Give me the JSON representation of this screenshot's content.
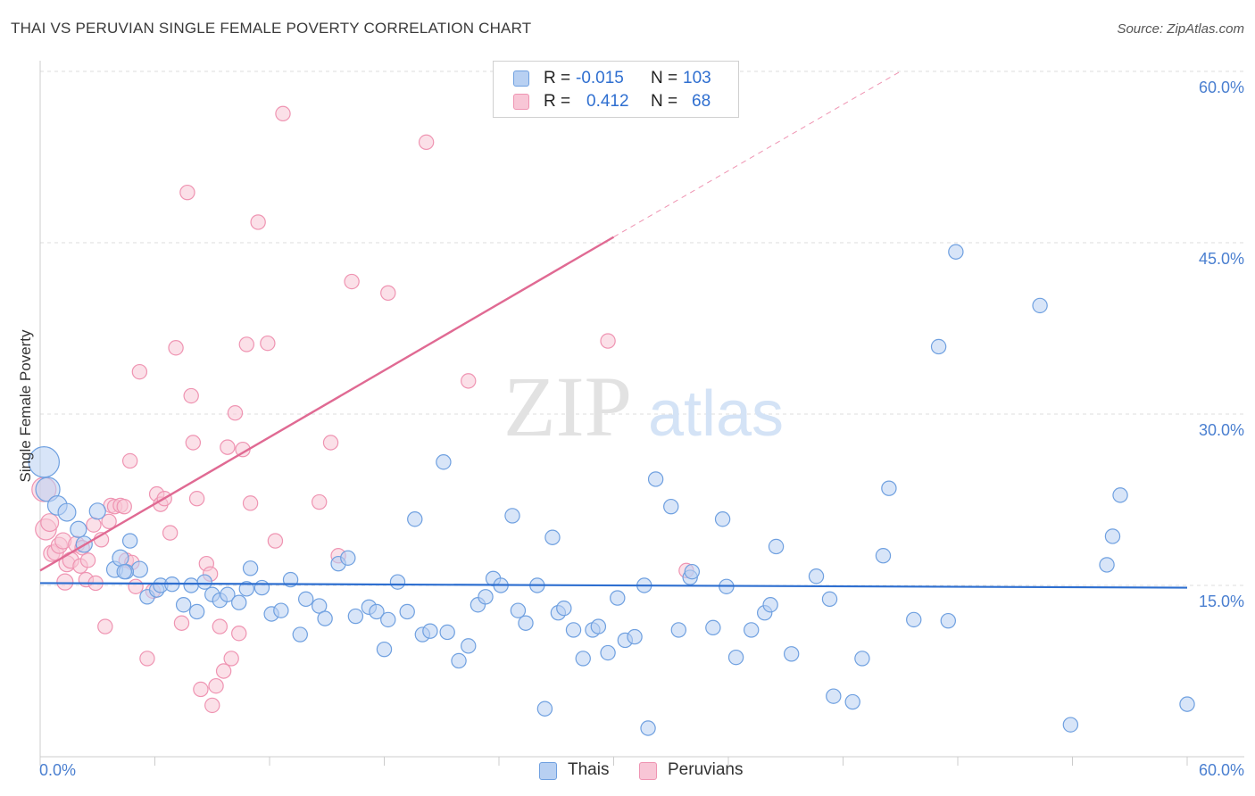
{
  "title": "THAI VS PERUVIAN SINGLE FEMALE POVERTY CORRELATION CHART",
  "source": "Source: ZipAtlas.com",
  "watermark": {
    "zip": "ZIP",
    "atlas": "atlas"
  },
  "colors": {
    "thai": "#6fa0e0",
    "thai_fill": "#b8d0f2",
    "thai_line": "#2e6fd0",
    "peru": "#ef94b2",
    "peru_fill": "#f8c6d6",
    "peru_line": "#e06a93",
    "grid": "#dddddd",
    "axis_text": "#4a7fd0"
  },
  "legend": {
    "thais": {
      "r_label": "R =",
      "r_value": "-0.015",
      "n_label": "N =",
      "n_value": "103"
    },
    "peruvians": {
      "r_label": "R =",
      "r_value": "0.412",
      "n_label": "N =",
      "n_value": "68"
    }
  },
  "bottom_legend": {
    "thais": "Thais",
    "peruvians": "Peruvians"
  },
  "chart_data": {
    "type": "scatter",
    "title": "THAI VS PERUVIAN SINGLE FEMALE POVERTY CORRELATION CHART",
    "xlabel": "",
    "ylabel": "Single Female Poverty",
    "xlim": [
      0,
      60
    ],
    "ylim": [
      0,
      60
    ],
    "x_tick_labels": [
      "0.0%",
      "60.0%"
    ],
    "y_ticks": [
      15,
      30,
      45,
      60
    ],
    "y_tick_labels": [
      "15.0%",
      "30.0%",
      "45.0%",
      "60.0%"
    ],
    "series": [
      {
        "name": "Thais",
        "r": -0.015,
        "n": 103,
        "trend": {
          "x0": 0,
          "y0": 15.2,
          "x1": 60,
          "y1": 14.8
        },
        "points": [
          [
            0.2,
            25.8,
            1.9
          ],
          [
            0.4,
            23.4,
            1.5
          ],
          [
            0.9,
            22.0,
            1.2
          ],
          [
            1.4,
            21.4,
            1.1
          ],
          [
            2.0,
            19.9,
            1.0
          ],
          [
            2.3,
            18.6,
            1.0
          ],
          [
            3.0,
            21.5,
            1.0
          ],
          [
            3.9,
            16.4,
            1.0
          ],
          [
            4.2,
            17.4,
            1.0
          ],
          [
            5.2,
            16.4,
            1.0
          ],
          [
            4.7,
            18.9,
            0.9
          ],
          [
            4.5,
            16.2,
            0.9
          ],
          [
            4.4,
            16.2,
            0.9
          ],
          [
            5.6,
            14.0,
            0.9
          ],
          [
            6.1,
            14.6,
            0.9
          ],
          [
            6.3,
            15.0,
            0.9
          ],
          [
            6.9,
            15.1,
            0.9
          ],
          [
            7.5,
            13.3,
            0.9
          ],
          [
            7.9,
            15.0,
            0.9
          ],
          [
            8.2,
            12.7,
            0.9
          ],
          [
            8.6,
            15.3,
            0.9
          ],
          [
            9.0,
            14.2,
            0.9
          ],
          [
            9.4,
            13.7,
            0.9
          ],
          [
            9.8,
            14.2,
            0.9
          ],
          [
            10.4,
            13.5,
            0.9
          ],
          [
            10.8,
            14.7,
            0.9
          ],
          [
            11.0,
            16.5,
            0.9
          ],
          [
            11.6,
            14.8,
            0.9
          ],
          [
            12.1,
            12.5,
            0.9
          ],
          [
            12.6,
            12.8,
            0.9
          ],
          [
            13.1,
            15.5,
            0.9
          ],
          [
            13.6,
            10.7,
            0.9
          ],
          [
            13.9,
            13.8,
            0.9
          ],
          [
            14.6,
            13.2,
            0.9
          ],
          [
            14.9,
            12.1,
            0.9
          ],
          [
            15.6,
            16.9,
            0.9
          ],
          [
            16.1,
            17.4,
            0.9
          ],
          [
            16.5,
            12.3,
            0.9
          ],
          [
            17.2,
            13.1,
            0.9
          ],
          [
            17.6,
            12.7,
            0.9
          ],
          [
            18.0,
            9.4,
            0.9
          ],
          [
            18.2,
            12.0,
            0.9
          ],
          [
            18.7,
            15.3,
            0.9
          ],
          [
            19.2,
            12.7,
            0.9
          ],
          [
            19.6,
            20.8,
            0.9
          ],
          [
            20.0,
            10.7,
            0.9
          ],
          [
            20.4,
            11.0,
            0.9
          ],
          [
            21.1,
            25.8,
            0.9
          ],
          [
            21.3,
            10.9,
            0.9
          ],
          [
            21.9,
            8.4,
            0.9
          ],
          [
            22.4,
            9.7,
            0.9
          ],
          [
            22.9,
            13.3,
            0.9
          ],
          [
            23.3,
            14.0,
            0.9
          ],
          [
            23.7,
            15.6,
            0.9
          ],
          [
            24.1,
            15.0,
            0.9
          ],
          [
            24.7,
            21.1,
            0.9
          ],
          [
            25.0,
            12.8,
            0.9
          ],
          [
            25.4,
            11.7,
            0.9
          ],
          [
            26.0,
            15.0,
            0.9
          ],
          [
            26.4,
            4.2,
            0.9
          ],
          [
            26.8,
            19.2,
            0.9
          ],
          [
            27.1,
            12.6,
            0.9
          ],
          [
            27.4,
            13.0,
            0.9
          ],
          [
            27.9,
            11.1,
            0.9
          ],
          [
            28.4,
            8.6,
            0.9
          ],
          [
            28.9,
            11.1,
            0.9
          ],
          [
            29.2,
            11.4,
            0.9
          ],
          [
            29.7,
            9.1,
            0.9
          ],
          [
            30.2,
            13.9,
            0.9
          ],
          [
            30.6,
            10.2,
            0.9
          ],
          [
            31.1,
            10.5,
            0.9
          ],
          [
            31.6,
            15.0,
            0.9
          ],
          [
            31.8,
            2.5,
            0.9
          ],
          [
            32.2,
            24.3,
            0.9
          ],
          [
            33.0,
            21.9,
            0.9
          ],
          [
            33.4,
            11.1,
            0.9
          ],
          [
            34.0,
            15.7,
            0.9
          ],
          [
            34.1,
            16.2,
            0.9
          ],
          [
            35.2,
            11.3,
            0.9
          ],
          [
            35.7,
            20.8,
            0.9
          ],
          [
            35.9,
            14.9,
            0.9
          ],
          [
            36.4,
            8.7,
            0.9
          ],
          [
            37.2,
            11.1,
            0.9
          ],
          [
            37.9,
            12.6,
            0.9
          ],
          [
            38.2,
            13.3,
            0.9
          ],
          [
            38.5,
            18.4,
            0.9
          ],
          [
            39.3,
            9.0,
            0.9
          ],
          [
            40.6,
            15.8,
            0.9
          ],
          [
            41.3,
            13.8,
            0.9
          ],
          [
            41.5,
            5.3,
            0.9
          ],
          [
            42.5,
            4.8,
            0.9
          ],
          [
            43.0,
            8.6,
            0.9
          ],
          [
            44.1,
            17.6,
            0.9
          ],
          [
            44.4,
            23.5,
            0.9
          ],
          [
            45.7,
            12.0,
            0.9
          ],
          [
            47.0,
            35.9,
            0.9
          ],
          [
            47.5,
            11.9,
            0.9
          ],
          [
            47.9,
            44.2,
            0.9
          ],
          [
            52.3,
            39.5,
            0.9
          ],
          [
            53.9,
            2.8,
            0.9
          ],
          [
            55.8,
            16.8,
            0.9
          ],
          [
            56.1,
            19.3,
            0.9
          ],
          [
            56.5,
            22.9,
            0.9
          ],
          [
            60.0,
            4.6,
            0.9
          ]
        ]
      },
      {
        "name": "Peruvians",
        "r": 0.412,
        "n": 68,
        "trend": {
          "x0": 0,
          "y0": 16.3,
          "x1": 30,
          "y1": 45.5,
          "dash_x1": 45,
          "dash_y1": 60
        },
        "points": [
          [
            0.2,
            23.4,
            1.5
          ],
          [
            0.3,
            19.9,
            1.3
          ],
          [
            0.5,
            20.5,
            1.1
          ],
          [
            0.6,
            17.8,
            1.0
          ],
          [
            0.8,
            17.9,
            1.0
          ],
          [
            1.0,
            18.5,
            1.0
          ],
          [
            1.2,
            18.9,
            1.0
          ],
          [
            1.3,
            15.3,
            1.0
          ],
          [
            1.4,
            16.9,
            1.0
          ],
          [
            1.6,
            17.2,
            1.0
          ],
          [
            1.9,
            18.6,
            1.0
          ],
          [
            2.1,
            16.7,
            0.9
          ],
          [
            2.2,
            18.3,
            0.9
          ],
          [
            2.4,
            15.5,
            0.9
          ],
          [
            2.5,
            17.2,
            0.9
          ],
          [
            2.8,
            20.3,
            0.9
          ],
          [
            2.9,
            15.2,
            0.9
          ],
          [
            3.2,
            19.0,
            0.9
          ],
          [
            3.4,
            11.4,
            0.9
          ],
          [
            3.6,
            20.6,
            0.9
          ],
          [
            3.7,
            22.0,
            0.9
          ],
          [
            3.9,
            21.9,
            0.9
          ],
          [
            4.2,
            22.0,
            0.9
          ],
          [
            4.4,
            21.9,
            0.9
          ],
          [
            4.5,
            17.2,
            0.9
          ],
          [
            4.7,
            25.9,
            0.9
          ],
          [
            4.8,
            17.0,
            0.9
          ],
          [
            5.0,
            14.9,
            0.9
          ],
          [
            5.2,
            33.7,
            0.9
          ],
          [
            5.6,
            8.6,
            0.9
          ],
          [
            5.9,
            14.5,
            0.9
          ],
          [
            6.1,
            23.0,
            0.9
          ],
          [
            6.3,
            22.1,
            0.9
          ],
          [
            6.5,
            22.6,
            0.9
          ],
          [
            6.8,
            19.6,
            0.9
          ],
          [
            7.1,
            35.8,
            0.9
          ],
          [
            7.4,
            11.7,
            0.9
          ],
          [
            7.7,
            49.4,
            0.9
          ],
          [
            7.9,
            31.6,
            0.9
          ],
          [
            8.0,
            27.5,
            0.9
          ],
          [
            8.2,
            22.6,
            0.9
          ],
          [
            8.4,
            5.9,
            0.9
          ],
          [
            8.7,
            16.9,
            0.9
          ],
          [
            8.9,
            16.0,
            0.9
          ],
          [
            9.0,
            4.5,
            0.9
          ],
          [
            9.2,
            6.2,
            0.9
          ],
          [
            9.4,
            11.4,
            0.9
          ],
          [
            9.6,
            7.5,
            0.9
          ],
          [
            9.8,
            27.1,
            0.9
          ],
          [
            10.0,
            8.6,
            0.9
          ],
          [
            10.2,
            30.1,
            0.9
          ],
          [
            10.4,
            10.8,
            0.9
          ],
          [
            10.6,
            26.9,
            0.9
          ],
          [
            10.8,
            36.1,
            0.9
          ],
          [
            11.0,
            22.2,
            0.9
          ],
          [
            11.4,
            46.8,
            0.9
          ],
          [
            11.9,
            36.2,
            0.9
          ],
          [
            12.3,
            18.9,
            0.9
          ],
          [
            12.7,
            56.3,
            0.9
          ],
          [
            14.6,
            22.3,
            0.9
          ],
          [
            15.2,
            27.5,
            0.9
          ],
          [
            15.6,
            17.6,
            0.9
          ],
          [
            16.3,
            41.6,
            0.9
          ],
          [
            18.2,
            40.6,
            0.9
          ],
          [
            20.2,
            53.8,
            0.9
          ],
          [
            22.4,
            32.9,
            0.9
          ],
          [
            29.7,
            36.4,
            0.9
          ],
          [
            33.8,
            16.3,
            0.9
          ]
        ]
      }
    ]
  }
}
